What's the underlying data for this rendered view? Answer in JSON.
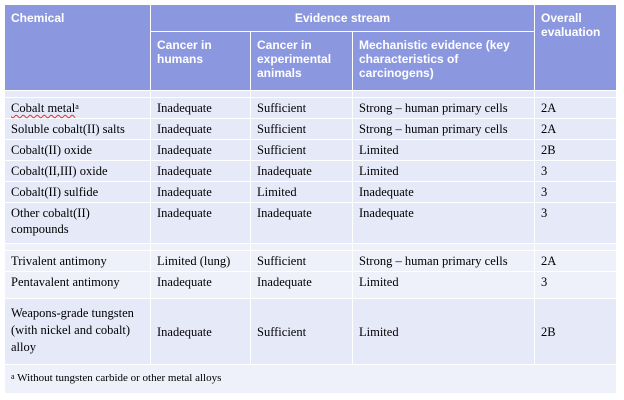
{
  "headers": {
    "chemical": "Chemical",
    "evidence_stream": "Evidence stream",
    "overall": "Overall evaluation",
    "cancer_humans": "Cancer in humans",
    "cancer_animals": "Cancer in experimental animals",
    "mechanistic": "Mechanistic evidence (key characteristics of carcinogens)"
  },
  "groups": [
    {
      "rows": [
        {
          "chemical": "Cobalt metal",
          "footnote": "a",
          "humans": "Inadequate",
          "animals": "Sufficient",
          "mechanistic": "Strong – human primary cells",
          "overall": "2A"
        },
        {
          "chemical": "Soluble cobalt(II) salts",
          "humans": "Inadequate",
          "animals": "Sufficient",
          "mechanistic": "Strong – human primary cells",
          "overall": "2A"
        },
        {
          "chemical": "Cobalt(II) oxide",
          "humans": "Inadequate",
          "animals": "Sufficient",
          "mechanistic": "Limited",
          "overall": "2B"
        },
        {
          "chemical": "Cobalt(II,III) oxide",
          "humans": "Inadequate",
          "animals": "Inadequate",
          "mechanistic": "Limited",
          "overall": "3"
        },
        {
          "chemical": "Cobalt(II) sulfide",
          "humans": "Inadequate",
          "animals": "Limited",
          "mechanistic": "Inadequate",
          "overall": "3"
        },
        {
          "chemical": "Other cobalt(II) compounds",
          "humans": "Inadequate",
          "animals": "Inadequate",
          "mechanistic": "Inadequate",
          "overall": "3"
        }
      ]
    },
    {
      "rows": [
        {
          "chemical": "Trivalent antimony",
          "humans": "Limited (lung)",
          "animals": "Sufficient",
          "mechanistic": "Strong – human primary cells",
          "overall": "2A"
        },
        {
          "chemical": "Pentavalent antimony",
          "humans": "Inadequate",
          "animals": "Inadequate",
          "mechanistic": "Limited",
          "overall": "3"
        }
      ]
    },
    {
      "rows": [
        {
          "chemical": "Weapons-grade tungsten (with nickel and cobalt) alloy",
          "humans": "Inadequate",
          "animals": "Sufficient",
          "mechanistic": "Limited",
          "overall": "2B"
        }
      ]
    }
  ],
  "footnote": {
    "mark": "a",
    "text": "Without tungsten carbide or other metal alloys"
  }
}
